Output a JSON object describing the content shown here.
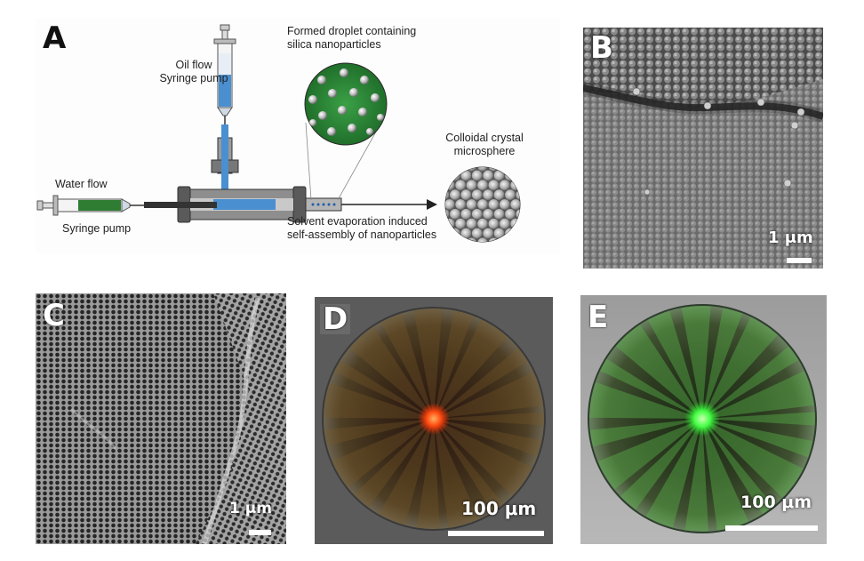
{
  "panel_a": {
    "label": "A",
    "oil_flow": "Oil flow",
    "oil_pump": "Syringe pump",
    "water_flow": "Water flow",
    "water_pump": "Syringe pump",
    "droplet_caption_1": "Formed droplet containing",
    "droplet_caption_2": "silica nanoparticles",
    "crystal_caption_1": "Colloidal crystal",
    "crystal_caption_2": "microsphere",
    "evap_caption_1": "Solvent evaporation induced",
    "evap_caption_2": "self-assembly of nanoparticles"
  },
  "panel_b": {
    "label": "B",
    "scale": "1 μm"
  },
  "panel_c": {
    "label": "C",
    "scale": "1 μm"
  },
  "panel_d": {
    "label": "D",
    "scale": "100 μm"
  },
  "panel_e": {
    "label": "E",
    "scale": "100 μm"
  },
  "colors": {
    "oil_blue": "#4a8fd0",
    "water_green": "#2e7d32",
    "droplet_green": "#2f8b3a",
    "particle_gray": "#d9d9d9",
    "d_core": "#ff4a10",
    "e_core": "#44ff44"
  }
}
